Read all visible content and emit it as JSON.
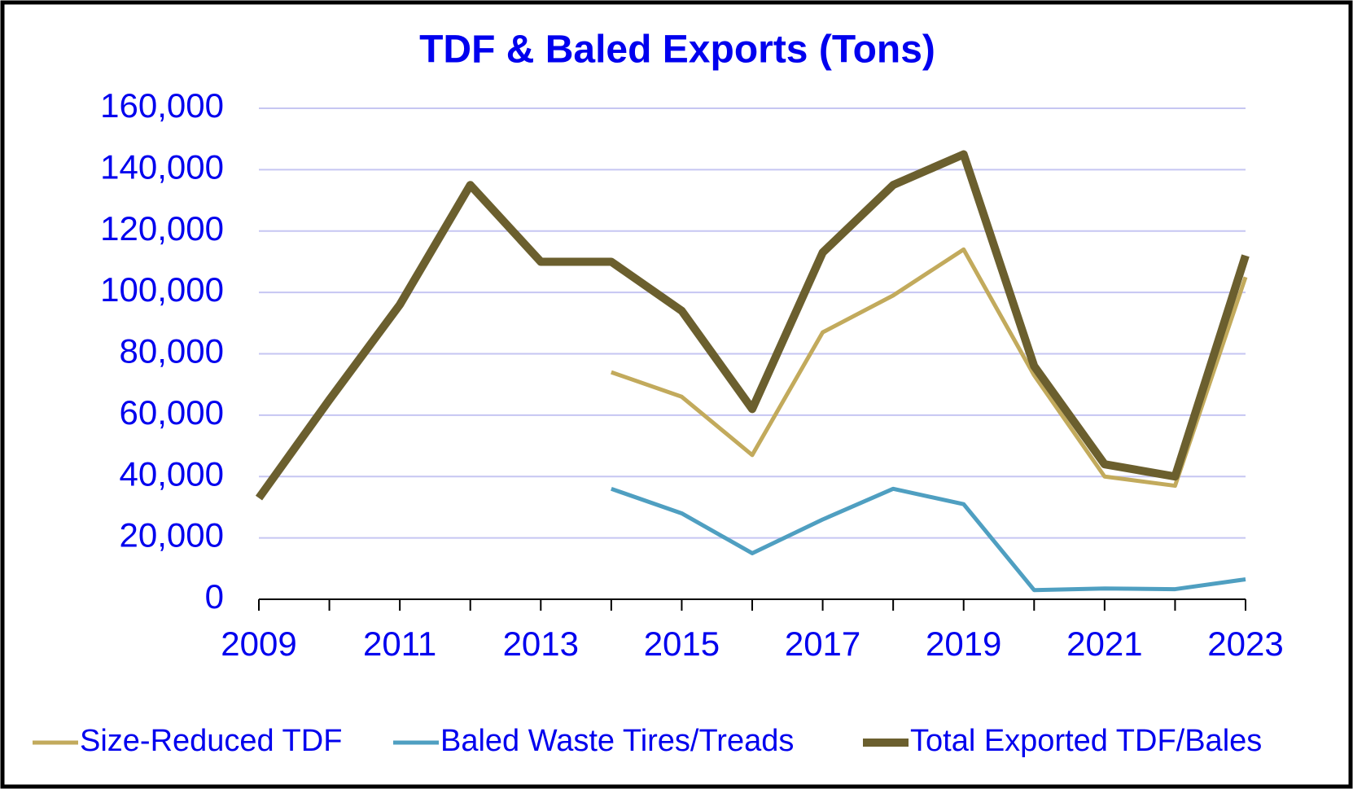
{
  "chart_data": {
    "type": "line",
    "title": "TDF & Baled Exports (Tons)",
    "x": [
      2009,
      2010,
      2011,
      2012,
      2013,
      2014,
      2015,
      2016,
      2017,
      2018,
      2019,
      2020,
      2021,
      2022,
      2023
    ],
    "series": [
      {
        "name": "Size-Reduced TDF",
        "color": "#c2aa5c",
        "values": [
          null,
          null,
          null,
          null,
          null,
          74000,
          66000,
          47000,
          87000,
          99000,
          114000,
          73000,
          40000,
          37000,
          105000
        ]
      },
      {
        "name": "Baled Waste Tires/Treads",
        "color": "#4f9fc1",
        "values": [
          null,
          null,
          null,
          null,
          null,
          36000,
          28000,
          15000,
          26000,
          36000,
          31000,
          3000,
          3500,
          3300,
          6500
        ]
      },
      {
        "name": "Total Exported TDF/Bales",
        "color": "#6b5f2e",
        "values": [
          33000,
          65000,
          96000,
          135000,
          110000,
          110000,
          94000,
          62000,
          113000,
          135000,
          145000,
          76000,
          44000,
          40000,
          112000
        ]
      }
    ],
    "xlim": [
      2009,
      2023
    ],
    "xticks": [
      2009,
      2011,
      2013,
      2015,
      2017,
      2019,
      2021,
      2023
    ],
    "ylim": [
      0,
      160000
    ],
    "yticks": [
      0,
      {
        "value": 20000,
        "label": "20,000"
      },
      {
        "value": 40000,
        "label": "40,000"
      },
      {
        "value": 60000,
        "label": "60,000"
      },
      {
        "value": 80000,
        "label": "80,000"
      },
      {
        "value": 100000,
        "label": "100,000"
      },
      {
        "value": 120000,
        "label": "120,000"
      },
      {
        "value": 140000,
        "label": "140,000"
      },
      {
        "value": 160000,
        "label": "160,000"
      }
    ],
    "grid": true,
    "legend": "bottom"
  }
}
